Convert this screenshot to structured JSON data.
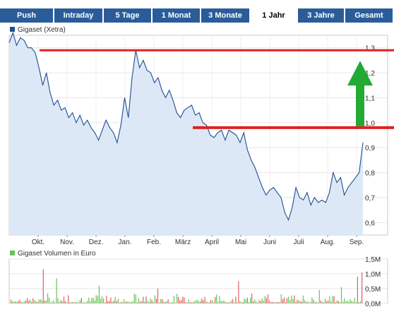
{
  "tabs": [
    {
      "label": "Push",
      "active": false
    },
    {
      "label": "Intraday",
      "active": false
    },
    {
      "label": "5 Tage",
      "active": false
    },
    {
      "label": "1 Monat",
      "active": false
    },
    {
      "label": "3 Monate",
      "active": false
    },
    {
      "label": "1 Jahr",
      "active": true
    },
    {
      "label": "3 Jahre",
      "active": false
    },
    {
      "label": "Gesamt",
      "active": false
    }
  ],
  "colors": {
    "tab_bg": "#2b5c9a",
    "price_line": "#1f4f8f",
    "price_fill": "#dde8f7",
    "volume_bar": "#6cc05e",
    "volume_bar_red": "#e06060",
    "annotation_line": "#e02020",
    "annotation_arrow": "#22aa33"
  },
  "chart_data": [
    {
      "type": "line",
      "legend": "Gigaset (Xetra)",
      "ylim": [
        0.55,
        1.35
      ],
      "y_ticks": [
        1.3,
        1.2,
        1.1,
        1.0,
        0.9,
        0.8,
        0.7,
        0.6
      ],
      "y_tick_labels": [
        "1,3",
        "1,2",
        "1,1",
        "1,0",
        "0,9",
        "0,8",
        "0,7",
        "0,6"
      ],
      "x_labels": [
        "Okt.",
        "Nov.",
        "Dez.",
        "Jan.",
        "Feb.",
        "März",
        "April",
        "Mai",
        "Juni",
        "Juli",
        "Aug.",
        "Sep."
      ],
      "series": [
        {
          "values": [
            1.32,
            1.36,
            1.31,
            1.34,
            1.33,
            1.3,
            1.3,
            1.28,
            1.22,
            1.15,
            1.2,
            1.12,
            1.07,
            1.09,
            1.05,
            1.06,
            1.02,
            1.04,
            1.0,
            1.03,
            0.99,
            1.01,
            0.98,
            0.96,
            0.93,
            0.97,
            1.01,
            0.98,
            0.96,
            0.92,
            0.99,
            1.1,
            1.02,
            1.18,
            1.29,
            1.22,
            1.25,
            1.21,
            1.2,
            1.16,
            1.18,
            1.13,
            1.1,
            1.13,
            1.09,
            1.04,
            1.02,
            1.05,
            1.06,
            1.07,
            1.03,
            1.04,
            1.0,
            0.99,
            0.95,
            0.94,
            0.96,
            0.97,
            0.93,
            0.97,
            0.96,
            0.95,
            0.92,
            0.96,
            0.89,
            0.85,
            0.82,
            0.78,
            0.74,
            0.71,
            0.73,
            0.74,
            0.72,
            0.7,
            0.64,
            0.61,
            0.66,
            0.74,
            0.7,
            0.69,
            0.72,
            0.67,
            0.7,
            0.68,
            0.69,
            0.68,
            0.72,
            0.8,
            0.76,
            0.78,
            0.71,
            0.74,
            0.76,
            0.78,
            0.8,
            0.92
          ]
        }
      ],
      "annotations": {
        "upper_line_value": 1.29,
        "lower_line_value": 0.98,
        "arrow": "up"
      }
    },
    {
      "type": "bar",
      "legend": "Gigaset Volumen in Euro",
      "ylim": [
        0,
        1.5
      ],
      "y_ticks": [
        0,
        0.5,
        1.0,
        1.5
      ],
      "y_tick_labels": [
        "0,0M",
        "0,5M",
        "1,0M",
        "1,5M"
      ]
    }
  ]
}
